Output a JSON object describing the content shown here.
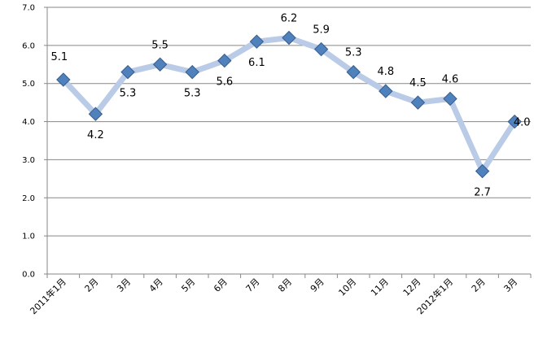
{
  "chart_data": {
    "type": "line",
    "title": "",
    "xlabel": "",
    "ylabel": "",
    "categories": [
      "2011年1月",
      "2月",
      "3月",
      "4月",
      "5月",
      "6月",
      "7月",
      "8月",
      "9月",
      "10月",
      "11月",
      "12月",
      "2012年1月",
      "2月",
      "3月"
    ],
    "series": [
      {
        "values": [
          5.1,
          4.2,
          5.3,
          5.5,
          5.3,
          5.6,
          6.1,
          6.2,
          5.9,
          5.3,
          4.8,
          4.5,
          4.6,
          2.7,
          4.0
        ],
        "labels": [
          "5.1",
          "4.2",
          "5.3",
          "5.5",
          "5.3",
          "5.6",
          "6.1",
          "6.2",
          "5.9",
          "5.3",
          "4.8",
          "4.5",
          "4.6",
          "2.7",
          "4.0"
        ]
      }
    ],
    "ylim": [
      0,
      7
    ],
    "yticks": [
      "0.0",
      "1.0",
      "2.0",
      "3.0",
      "4.0",
      "5.0",
      "6.0",
      "7.0"
    ],
    "grid": "horizontal",
    "legend": "none",
    "colors": {
      "line": "#b9cbe6",
      "marker_fill": "#4f81bd",
      "marker_stroke": "#385d8a",
      "grid": "#878787",
      "axis": "#878787"
    }
  }
}
